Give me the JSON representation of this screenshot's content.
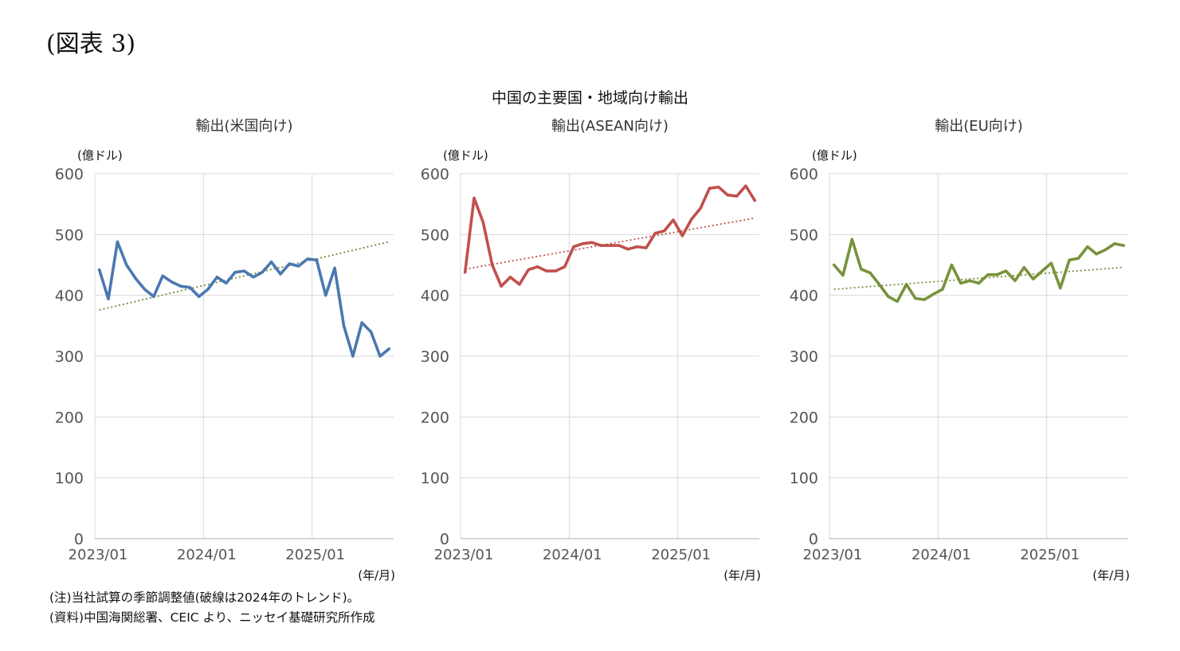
{
  "figure_label": "(図表 3)",
  "main_title": "中国の主要国・地域向け輸出",
  "notes": [
    "(注)当社試算の季節調整値(破線は2024年のトレンド)。",
    "(資料)中国海関総署、CEIC より、ニッセイ基礎研究所作成"
  ],
  "chart_data": [
    {
      "type": "line",
      "title": "輸出(米国向け)",
      "unit_label": "(億ドル)",
      "xlabel": "(年/月)",
      "x_ticks": [
        "2023/01",
        "2024/01",
        "2025/01"
      ],
      "y_ticks": [
        "600",
        "500",
        "400",
        "300",
        "200",
        "100",
        "0"
      ],
      "ylim": [
        0,
        600
      ],
      "color": "#4a78b0",
      "trend_color": "#6d8a3a",
      "x_start": "2023/01",
      "x_end": "2025/09",
      "values": [
        442,
        394,
        488,
        450,
        428,
        410,
        398,
        432,
        422,
        415,
        413,
        398,
        410,
        430,
        420,
        438,
        440,
        430,
        438,
        455,
        435,
        452,
        448,
        460,
        458,
        400,
        445,
        350,
        300,
        355,
        340,
        300,
        312
      ],
      "trend": [
        376,
        488
      ],
      "grid": true
    },
    {
      "type": "line",
      "title": "輸出(ASEAN向け)",
      "unit_label": "(億ドル)",
      "xlabel": "(年/月)",
      "x_ticks": [
        "2023/01",
        "2024/01",
        "2025/01"
      ],
      "y_ticks": [
        "600",
        "500",
        "400",
        "300",
        "200",
        "100",
        "0"
      ],
      "ylim": [
        0,
        600
      ],
      "color": "#c0504d",
      "trend_color": "#c0504d",
      "x_start": "2023/01",
      "x_end": "2025/09",
      "values": [
        438,
        560,
        520,
        450,
        415,
        430,
        418,
        442,
        447,
        440,
        440,
        447,
        480,
        485,
        487,
        482,
        482,
        482,
        476,
        480,
        478,
        502,
        506,
        524,
        498,
        525,
        543,
        576,
        578,
        565,
        563,
        580,
        556
      ],
      "trend": [
        443,
        527
      ],
      "grid": true
    },
    {
      "type": "line",
      "title": "輸出(EU向け)",
      "unit_label": "(億ドル)",
      "xlabel": "(年/月)",
      "x_ticks": [
        "2023/01",
        "2024/01",
        "2025/01"
      ],
      "y_ticks": [
        "600",
        "500",
        "400",
        "300",
        "200",
        "100",
        "0"
      ],
      "ylim": [
        0,
        600
      ],
      "color": "#77933c",
      "trend_color": "#77933c",
      "x_start": "2023/01",
      "x_end": "2025/09",
      "values": [
        450,
        433,
        492,
        443,
        437,
        418,
        398,
        390,
        418,
        395,
        393,
        402,
        410,
        450,
        420,
        424,
        420,
        434,
        434,
        440,
        424,
        446,
        427,
        440,
        453,
        412,
        458,
        461,
        480,
        468,
        475,
        485,
        482
      ],
      "trend": [
        410,
        446
      ],
      "grid": true
    }
  ]
}
